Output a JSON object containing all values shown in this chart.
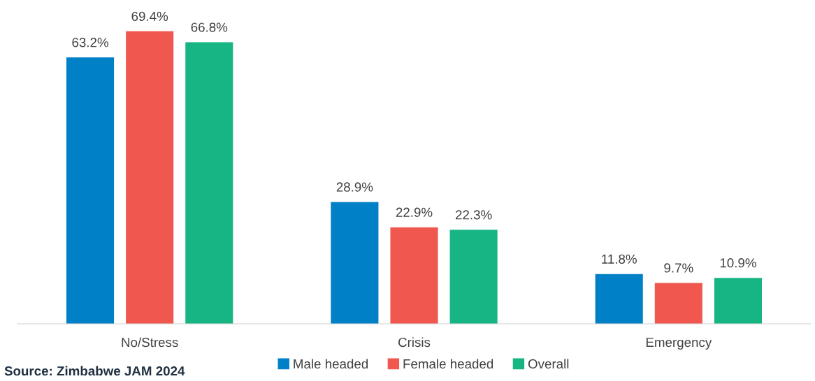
{
  "chart_data": {
    "type": "bar",
    "categories": [
      "No/Stress",
      "Crisis",
      "Emergency"
    ],
    "series": [
      {
        "name": "Male headed",
        "color": "#0080c6",
        "values": [
          63.2,
          28.9,
          11.8
        ],
        "value_labels": [
          "63.2%",
          "28.9%",
          "11.8%"
        ]
      },
      {
        "name": "Female headed",
        "color": "#f0574f",
        "values": [
          69.4,
          22.9,
          9.7
        ],
        "value_labels": [
          "69.4%",
          "22.9%",
          "9.7%"
        ]
      },
      {
        "name": "Overall",
        "color": "#17b584",
        "values": [
          66.8,
          22.3,
          10.9
        ],
        "value_labels": [
          "66.8%",
          "22.3%",
          "10.9%"
        ]
      }
    ],
    "annotations": [
      "Source: Zimbabwe JAM 2024"
    ],
    "legend": "bottom",
    "grid": false
  }
}
